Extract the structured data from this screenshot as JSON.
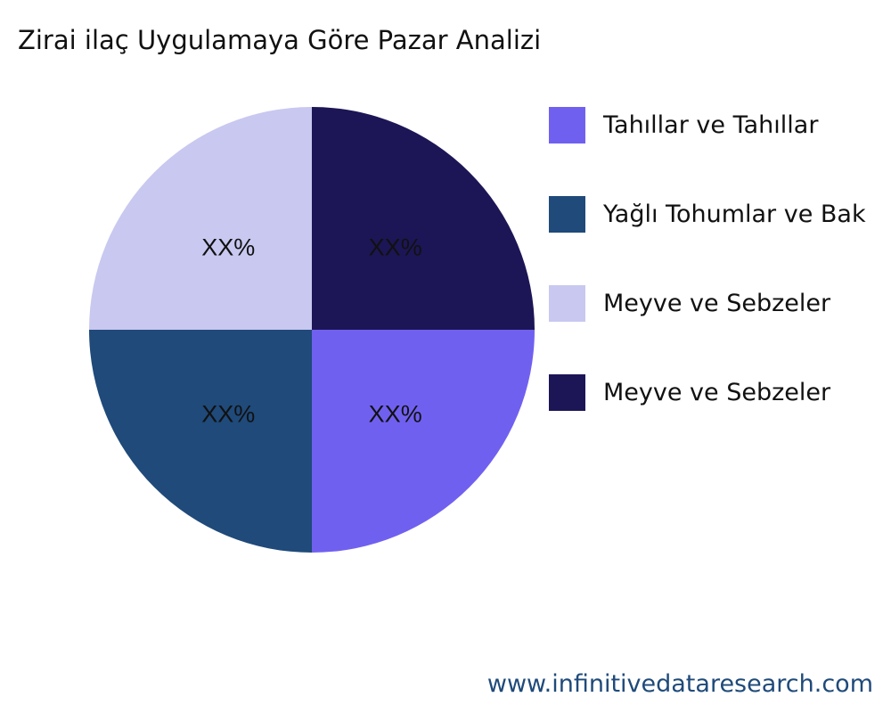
{
  "chart_data": {
    "type": "pie",
    "title": "Zirai ilaç Uygulamaya Göre Pazar Analizi",
    "categories": [
      "Tahıllar ve Tahıllar",
      "Yağlı Tohumlar ve Bak",
      "Meyve ve Sebzeler",
      "Meyve ve Sebzeler"
    ],
    "values": [
      25,
      25,
      25,
      25
    ],
    "data_labels": [
      "XX%",
      "XX%",
      "XX%",
      "XX%"
    ],
    "colors": [
      "#7060f0",
      "#1f4a7a",
      "#c8c8f0",
      "#1c1656"
    ],
    "legend_position": "right"
  },
  "footer": "www.infinitivedataresearch.com"
}
